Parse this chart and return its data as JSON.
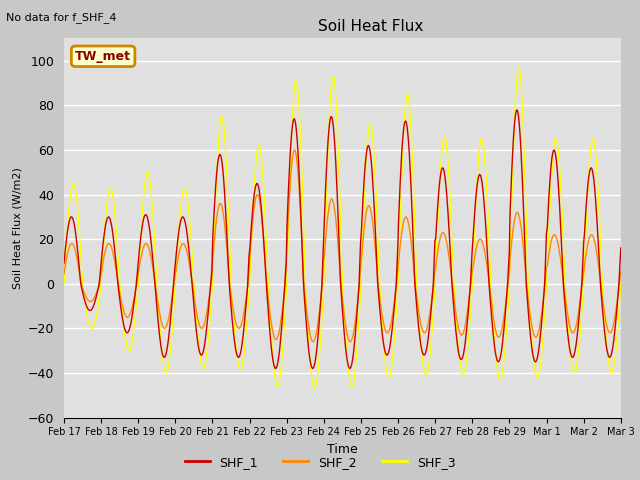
{
  "title": "Soil Heat Flux",
  "ylabel": "Soil Heat Flux (W/m2)",
  "xlabel": "Time",
  "annotation": "No data for f_SHF_4",
  "legend_label_text": "TW_met",
  "ylim": [
    -60,
    110
  ],
  "yticks": [
    -60,
    -40,
    -20,
    0,
    20,
    40,
    60,
    80,
    100
  ],
  "series_colors": [
    "#cc0000",
    "#ff8800",
    "#ffff00"
  ],
  "series_labels": [
    "SHF_1",
    "SHF_2",
    "SHF_3"
  ],
  "fig_facecolor": "#c8c8c8",
  "plot_facecolor": "#e0e0e0",
  "n_days": 15,
  "points_per_day": 48,
  "date_labels": [
    "Feb 17",
    "Feb 18",
    "Feb 19",
    "Feb 20",
    "Feb 21",
    "Feb 22",
    "Feb 23",
    "Feb 24",
    "Feb 25",
    "Feb 26",
    "Feb 27",
    "Feb 28",
    "Feb 29",
    "Mar 1",
    "Mar 2",
    "Mar 3"
  ],
  "day_amplitudes_shf3": [
    45,
    43,
    50,
    43,
    75,
    62,
    91,
    93,
    72,
    85,
    66,
    65,
    97,
    65,
    65
  ],
  "day_amplitudes_shf1": [
    30,
    30,
    31,
    30,
    58,
    45,
    74,
    75,
    62,
    73,
    52,
    49,
    78,
    60,
    52
  ],
  "day_amplitudes_shf2": [
    18,
    18,
    18,
    18,
    36,
    40,
    60,
    38,
    35,
    30,
    23,
    20,
    32,
    22,
    22
  ],
  "night_amplitudes_shf3": [
    20,
    30,
    40,
    38,
    38,
    46,
    47,
    46,
    42,
    41,
    41,
    43,
    42,
    40,
    40
  ],
  "night_amplitudes_shf1": [
    12,
    22,
    33,
    32,
    33,
    38,
    38,
    38,
    32,
    32,
    34,
    35,
    35,
    33,
    33
  ],
  "night_amplitudes_shf2": [
    8,
    15,
    20,
    20,
    20,
    25,
    26,
    26,
    22,
    22,
    23,
    24,
    24,
    22,
    22
  ]
}
